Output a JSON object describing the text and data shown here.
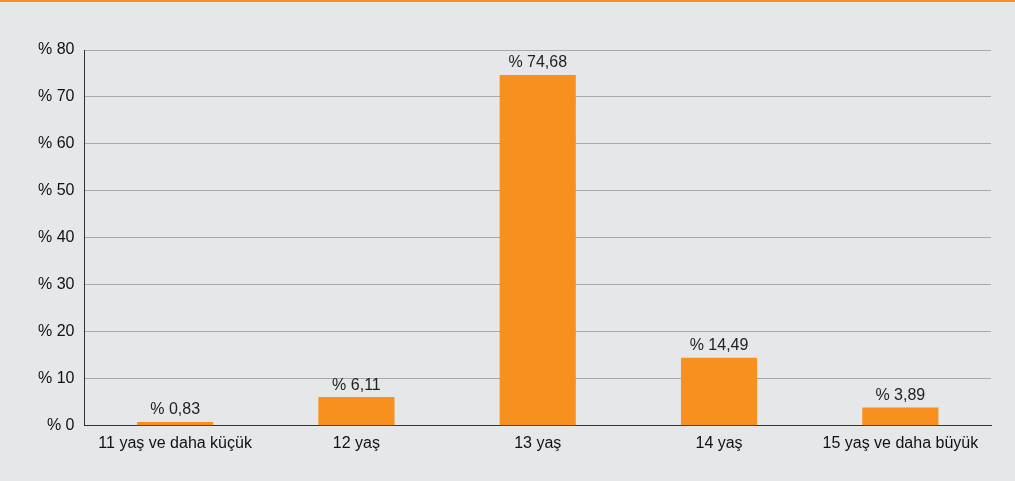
{
  "chart_data": {
    "type": "bar",
    "categories": [
      "11 yaş ve daha küçük",
      "12 yaş",
      "13 yaş",
      "14 yaş",
      "15 yaş ve daha büyük"
    ],
    "values": [
      0.83,
      6.11,
      74.68,
      14.49,
      3.89
    ],
    "value_labels": [
      "% 0,83",
      "% 6,11",
      "% 74,68",
      "% 14,49",
      "% 3,89"
    ],
    "color": "#f7901e",
    "ylim": [
      0,
      80
    ],
    "yticks": [
      {
        "value": 0,
        "label": "% 0"
      },
      {
        "value": 10,
        "label": "% 10"
      },
      {
        "value": 20,
        "label": "% 20"
      },
      {
        "value": 30,
        "label": "% 30"
      },
      {
        "value": 40,
        "label": "% 40"
      },
      {
        "value": 50,
        "label": "% 50"
      },
      {
        "value": 60,
        "label": "% 60"
      },
      {
        "value": 70,
        "label": "% 70"
      },
      {
        "value": 80,
        "label": "% 80"
      }
    ],
    "grid": "y",
    "legend": false
  }
}
